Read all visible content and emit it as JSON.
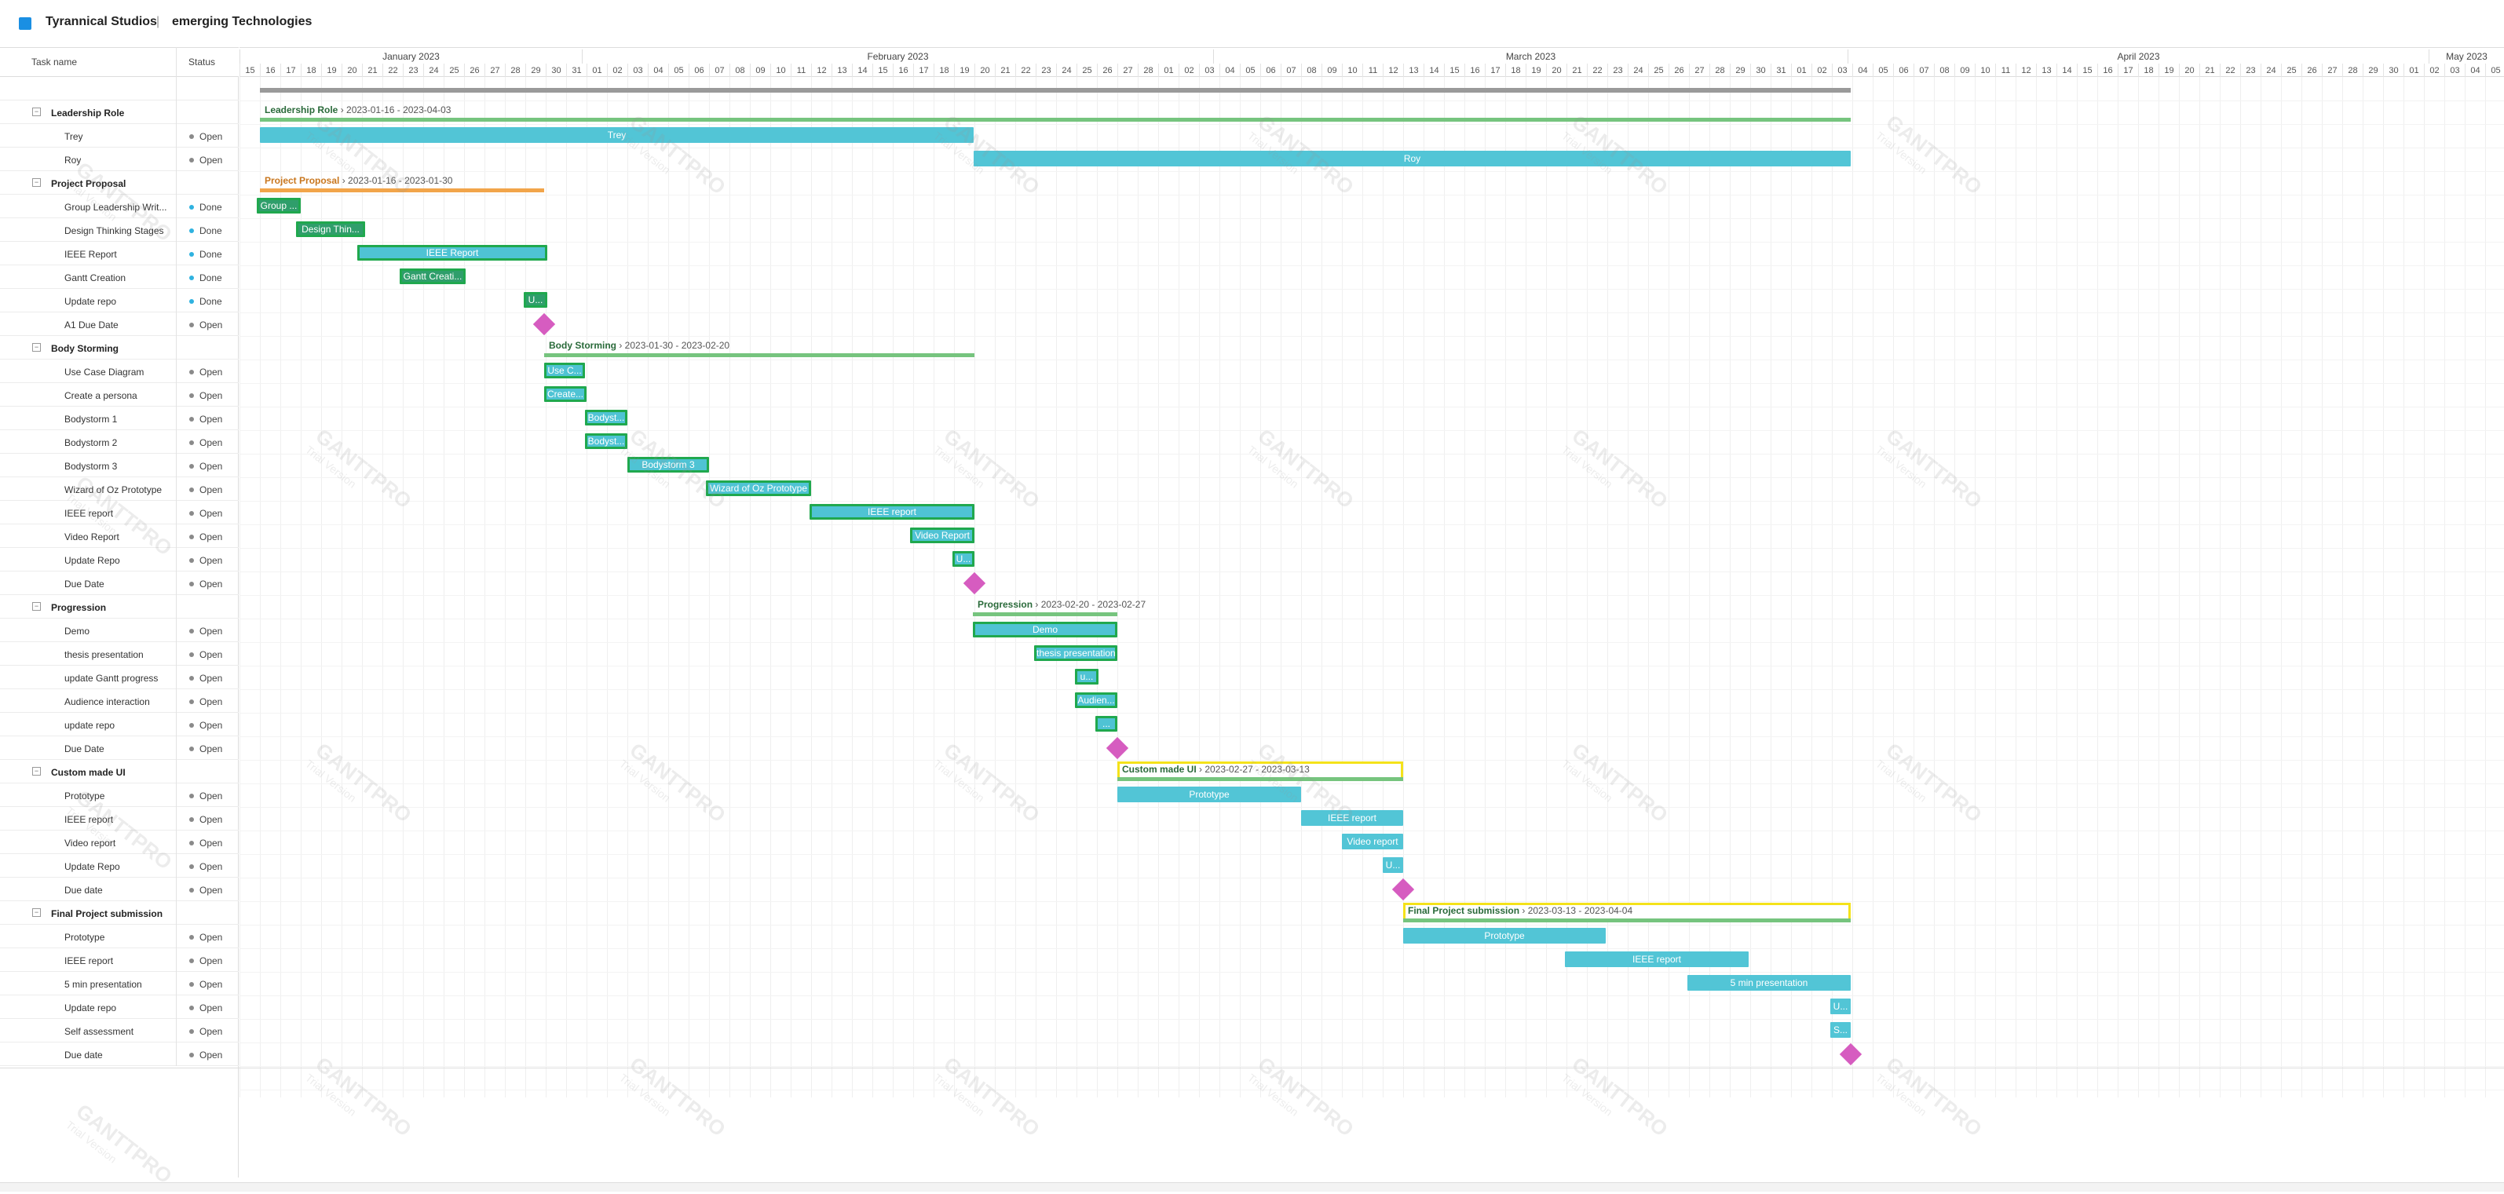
{
  "header": {
    "company": "Tyrannical Studios",
    "separator": "|",
    "project": "emerging Technologies",
    "accent": "#1a8fe3"
  },
  "grid": {
    "col_task": "Task name",
    "col_status": "Status"
  },
  "watermark": {
    "line1": "GANTTPRO",
    "line2": "Trial Version"
  },
  "timeline": {
    "months": [
      "January 2023",
      "February 2023",
      "March 2023",
      "April 2023",
      "May 2023"
    ],
    "days": [
      "15",
      "16",
      "17",
      "18",
      "19",
      "20",
      "21",
      "22",
      "23",
      "24",
      "25",
      "26",
      "27",
      "28",
      "29",
      "30",
      "31",
      "01",
      "02",
      "03",
      "04",
      "05",
      "06",
      "07",
      "08",
      "09",
      "10",
      "11",
      "12",
      "13",
      "14",
      "15",
      "16",
      "17",
      "18",
      "19",
      "20",
      "21",
      "22",
      "23",
      "24",
      "25",
      "26",
      "27",
      "28",
      "01",
      "02",
      "03",
      "04",
      "05",
      "06",
      "07",
      "08",
      "09",
      "10",
      "11",
      "12",
      "13",
      "14",
      "15",
      "16",
      "17",
      "18",
      "19",
      "20",
      "21",
      "22",
      "23",
      "24",
      "25",
      "26",
      "27",
      "28",
      "29",
      "30",
      "31",
      "01",
      "02",
      "03",
      "04",
      "05",
      "06",
      "07",
      "08",
      "09",
      "10",
      "11",
      "12",
      "13",
      "14",
      "15",
      "16",
      "17",
      "18",
      "19",
      "20",
      "21",
      "22",
      "23",
      "24",
      "25",
      "26",
      "27",
      "28",
      "29",
      "30",
      "01",
      "02",
      "03",
      "04",
      "05"
    ]
  },
  "colors": {
    "bar": "#52c5d6",
    "done_border": "#20a84e",
    "milestone": "#d65cc0",
    "group_line": "#76c47e",
    "project_line": "#f2a54a",
    "highlight": "#f4e21a",
    "status_done": "#2fb2e0",
    "status_open": "#8a8a8a"
  },
  "rows": [
    {
      "type": "root",
      "name": "",
      "status": ""
    },
    {
      "type": "group",
      "name": "Leadership Role",
      "status": "",
      "label": "Leadership Role",
      "range": "2023-01-16 - 2023-04-03"
    },
    {
      "type": "task",
      "name": "Trey",
      "status": "Open",
      "bar": "Trey"
    },
    {
      "type": "task",
      "name": "Roy",
      "status": "Open",
      "bar": "Roy"
    },
    {
      "type": "group",
      "name": "Project Proposal",
      "status": "",
      "label": "Project Proposal",
      "range": "2023-01-16 - 2023-01-30"
    },
    {
      "type": "task",
      "name": "Group Leadership Writ...",
      "status": "Done",
      "bar": "Group ..."
    },
    {
      "type": "task",
      "name": "Design Thinking Stages",
      "status": "Done",
      "bar": "Design Thin..."
    },
    {
      "type": "task",
      "name": "IEEE Report",
      "status": "Done",
      "bar": "IEEE Report"
    },
    {
      "type": "task",
      "name": "Gantt Creation",
      "status": "Done",
      "bar": "Gantt Creati..."
    },
    {
      "type": "task",
      "name": "Update repo",
      "status": "Done",
      "bar": "U..."
    },
    {
      "type": "milestone",
      "name": "A1 Due Date",
      "status": "Open"
    },
    {
      "type": "group",
      "name": "Body Storming",
      "status": "",
      "label": "Body Storming",
      "range": "2023-01-30 - 2023-02-20"
    },
    {
      "type": "task",
      "name": "Use Case Diagram",
      "status": "Open",
      "bar": "Use C..."
    },
    {
      "type": "task",
      "name": "Create a persona",
      "status": "Open",
      "bar": "Create..."
    },
    {
      "type": "task",
      "name": "Bodystorm 1",
      "status": "Open",
      "bar": "Bodyst..."
    },
    {
      "type": "task",
      "name": "Bodystorm 2",
      "status": "Open",
      "bar": "Bodyst..."
    },
    {
      "type": "task",
      "name": "Bodystorm 3",
      "status": "Open",
      "bar": "Bodystorm 3"
    },
    {
      "type": "task",
      "name": "Wizard of Oz Prototype",
      "status": "Open",
      "bar": "Wizard of Oz Prototype"
    },
    {
      "type": "task",
      "name": "IEEE report",
      "status": "Open",
      "bar": "IEEE report"
    },
    {
      "type": "task",
      "name": "Video Report",
      "status": "Open",
      "bar": "Video Report"
    },
    {
      "type": "task",
      "name": "Update Repo",
      "status": "Open",
      "bar": "U..."
    },
    {
      "type": "milestone",
      "name": "Due Date",
      "status": "Open"
    },
    {
      "type": "group",
      "name": "Progression",
      "status": "",
      "label": "Progression",
      "range": "2023-02-20 - 2023-02-27"
    },
    {
      "type": "task",
      "name": "Demo",
      "status": "Open",
      "bar": "Demo"
    },
    {
      "type": "task",
      "name": "thesis presentation",
      "status": "Open",
      "bar": "thesis presentation"
    },
    {
      "type": "task",
      "name": "update Gantt progress",
      "status": "Open",
      "bar": "u..."
    },
    {
      "type": "task",
      "name": "Audience interaction",
      "status": "Open",
      "bar": "Audien..."
    },
    {
      "type": "task",
      "name": "update repo",
      "status": "Open",
      "bar": "..."
    },
    {
      "type": "milestone",
      "name": "Due Date",
      "status": "Open"
    },
    {
      "type": "group",
      "name": "Custom made UI",
      "status": "",
      "label": "Custom made UI",
      "range": "2023-02-27 - 2023-03-13"
    },
    {
      "type": "task",
      "name": "Prototype",
      "status": "Open",
      "bar": "Prototype"
    },
    {
      "type": "task",
      "name": "IEEE report",
      "status": "Open",
      "bar": "IEEE report"
    },
    {
      "type": "task",
      "name": "Video report",
      "status": "Open",
      "bar": "Video report"
    },
    {
      "type": "task",
      "name": "Update Repo",
      "status": "Open",
      "bar": "U..."
    },
    {
      "type": "milestone",
      "name": "Due date",
      "status": "Open"
    },
    {
      "type": "group",
      "name": "Final Project submission",
      "status": "",
      "label": "Final Project submission",
      "range": "2023-03-13 - 2023-04-04"
    },
    {
      "type": "task",
      "name": "Prototype",
      "status": "Open",
      "bar": "Prototype"
    },
    {
      "type": "task",
      "name": "IEEE report",
      "status": "Open",
      "bar": "IEEE report"
    },
    {
      "type": "task",
      "name": "5 min presentation",
      "status": "Open",
      "bar": "5 min presentation"
    },
    {
      "type": "task",
      "name": "Update repo",
      "status": "Open",
      "bar": "U..."
    },
    {
      "type": "task",
      "name": "Self assessment",
      "status": "Open",
      "bar": "S..."
    },
    {
      "type": "milestone",
      "name": "Due date",
      "status": "Open"
    }
  ]
}
